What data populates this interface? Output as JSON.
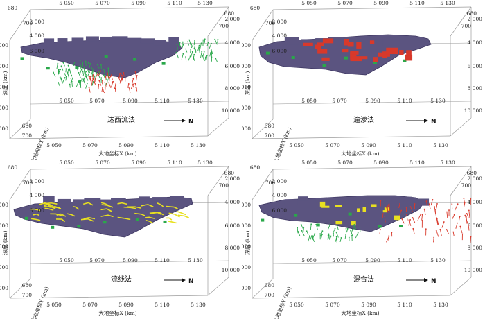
{
  "colors": {
    "surface": "#5b5480",
    "surface_edge": "#3c3560",
    "green": "#2aa84a",
    "red": "#d8392b",
    "yellow": "#e8e020",
    "box": "#9a9a9a"
  },
  "north_label": "N",
  "x_axis_title": "大地坐标X (km)",
  "y_axis_title": "大地坐标Y (km)",
  "depth_axis_title": "深度 (km)",
  "panels": [
    {
      "method": "达西流法",
      "overlay": "darcy-vectors",
      "top_x_ticks": [
        "5 050",
        "5 070",
        "5 090",
        "5 110",
        "5 130"
      ],
      "left_top_ticks": [
        "680",
        "700"
      ],
      "left_depth_ticks": [
        "2 000",
        "4 000",
        "6 000",
        "8 000",
        "10 000"
      ],
      "right_top_ticks": [
        "680",
        "700"
      ],
      "right_depth_ticks": [
        "2 000",
        "4 000",
        "6 000",
        "8 000",
        "10 000"
      ],
      "inner_depth_ticks": [
        "2 000",
        "4 000",
        "6 000"
      ],
      "mid_x_ticks": [
        "5 050",
        "5 070",
        "5 090",
        "5 110",
        "5 130"
      ],
      "bottom_x_ticks": [
        "5 050",
        "5 070",
        "5 090",
        "5 110",
        "5 130"
      ],
      "y_ticks": [
        "680",
        "700"
      ]
    },
    {
      "method": "逾渗法",
      "overlay": "percolation",
      "top_x_ticks": [
        "5 050",
        "5 070",
        "5 090",
        "5 110",
        "5 130"
      ],
      "left_top_ticks": [
        "680",
        "700"
      ],
      "left_depth_ticks": [
        "2 000",
        "4 000",
        "6 000",
        "8 000",
        "10 000"
      ],
      "right_top_ticks": [
        "680",
        "700"
      ],
      "right_depth_ticks": [
        "2 000",
        "4 000",
        "6 000",
        "8 000",
        "10 000"
      ],
      "inner_depth_ticks": [
        "2 000",
        "4 000",
        "6 000"
      ],
      "mid_x_ticks": [
        "5 050",
        "5 070",
        "5 090",
        "5 110",
        "5 130"
      ],
      "bottom_x_ticks": [
        "5 050",
        "5 070",
        "5 090",
        "5 110",
        "5 130"
      ],
      "y_ticks": [
        "680",
        "700"
      ]
    },
    {
      "method": "流线法",
      "overlay": "streamline",
      "top_x_ticks": [
        "5 050",
        "5 070",
        "5 090",
        "5 110",
        "5 130"
      ],
      "left_top_ticks": [
        "680",
        "700"
      ],
      "left_depth_ticks": [
        "2 000",
        "4 000",
        "6 000",
        "8 000",
        "10 000"
      ],
      "right_top_ticks": [
        "680",
        "700"
      ],
      "right_depth_ticks": [
        "2 000",
        "4 000",
        "6 000",
        "8 000",
        "10 000"
      ],
      "inner_depth_ticks": [
        "2 000",
        "4 000",
        "6 000"
      ],
      "mid_x_ticks": [
        "5 050",
        "5 070",
        "5 090",
        "5 110",
        "5 130"
      ],
      "bottom_x_ticks": [
        "5 050",
        "5 070",
        "5 090",
        "5 110",
        "5 130"
      ],
      "y_ticks": [
        "680",
        "700"
      ]
    },
    {
      "method": "混合法",
      "overlay": "hybrid",
      "top_x_ticks": [
        "5 050",
        "5 070",
        "5 090",
        "5 110",
        "5 130"
      ],
      "left_top_ticks": [
        "680",
        "700"
      ],
      "left_depth_ticks": [
        "2 000",
        "4 000",
        "6 000",
        "8 000",
        "10 000"
      ],
      "right_top_ticks": [
        "680",
        "700"
      ],
      "right_depth_ticks": [
        "2 000",
        "4 000",
        "6 000",
        "8 000",
        "10 000"
      ],
      "inner_depth_ticks": [
        "2 000",
        "4 000",
        "6 000"
      ],
      "mid_x_ticks": [
        "5 050",
        "5 070",
        "5 090",
        "5 110",
        "5 130"
      ],
      "bottom_x_ticks": [
        "5 050",
        "5 070",
        "5 090",
        "5 110",
        "5 130"
      ],
      "y_ticks": [
        "680",
        "700"
      ]
    }
  ]
}
